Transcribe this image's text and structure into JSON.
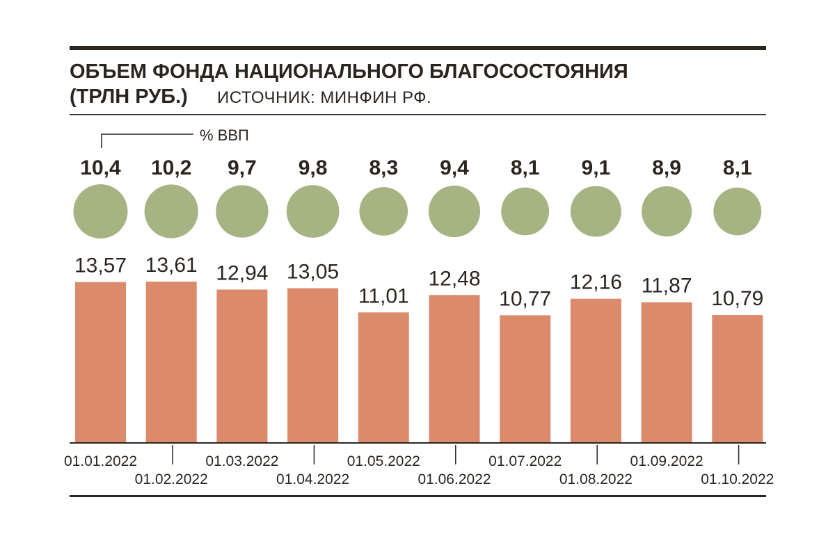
{
  "title_line1": "ОБЪЕМ ФОНДА НАЦИОНАЛЬНОГО БЛАГОСОСТОЯНИЯ",
  "title_line2": "(ТРЛН РУБ.)",
  "source": "ИСТОЧНИК: МИНФИН РФ.",
  "gdp_label": "% ВВП",
  "colors": {
    "bar": "#db8b6b",
    "circle": "#a6b484",
    "ink": "#2b2520"
  },
  "chart_data": {
    "type": "bar",
    "categories": [
      "01.01.2022",
      "01.02.2022",
      "01.03.2022",
      "01.04.2022",
      "01.05.2022",
      "01.06.2022",
      "01.07.2022",
      "01.08.2022",
      "01.09.2022",
      "01.10.2022"
    ],
    "values": [
      13.57,
      13.61,
      12.94,
      13.05,
      11.01,
      12.48,
      10.77,
      12.16,
      11.87,
      10.79
    ],
    "value_labels": [
      "13,57",
      "13,61",
      "12,94",
      "13,05",
      "11,01",
      "12,48",
      "10,77",
      "12,16",
      "11,87",
      "10,79"
    ],
    "gdp_share": [
      10.4,
      10.2,
      9.7,
      9.8,
      8.3,
      9.4,
      8.1,
      9.1,
      8.9,
      8.1
    ],
    "gdp_share_labels": [
      "10,4",
      "10,2",
      "9,7",
      "9,8",
      "8,3",
      "9,4",
      "8,1",
      "9,1",
      "8,9",
      "8,1"
    ],
    "ylim": [
      0,
      13.61
    ],
    "grid": false
  }
}
